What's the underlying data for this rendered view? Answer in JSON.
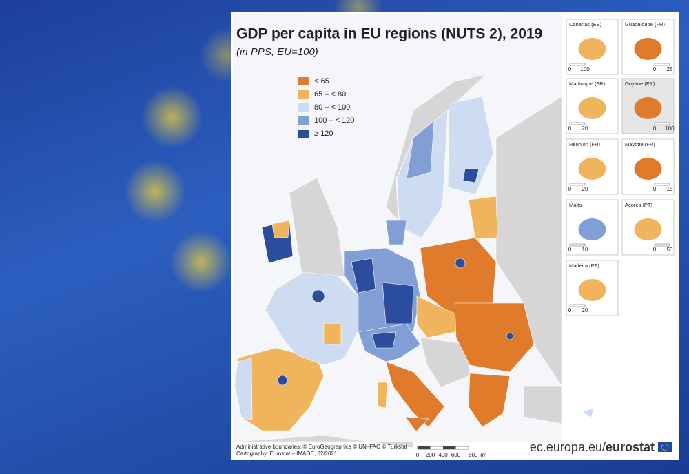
{
  "title": "GDP per capita in EU regions (NUTS 2), 2019",
  "subtitle": "(in PPS, EU=100)",
  "legend": [
    {
      "label": "< 65",
      "color": "#e07b2b"
    },
    {
      "label": "65 – < 80",
      "color": "#f0b55c"
    },
    {
      "label": "80 – < 100",
      "color": "#cddcf1"
    },
    {
      "label": "100 – < 120",
      "color": "#829fd5"
    },
    {
      "label": "≥ 120",
      "color": "#2c4d9e"
    }
  ],
  "insets": [
    {
      "name": "Canarias (ES)",
      "scale": [
        "0",
        "100"
      ]
    },
    {
      "name": "Guadeloupe (FR)",
      "scale": [
        "0",
        "25"
      ]
    },
    {
      "name": "Martinique (FR)",
      "scale": [
        "0",
        "20"
      ]
    },
    {
      "name": "Guyane (FR)",
      "scale": [
        "0",
        "100"
      ]
    },
    {
      "name": "Réunion (FR)",
      "scale": [
        "0",
        "20"
      ]
    },
    {
      "name": "Mayotte (FR)",
      "scale": [
        "0",
        "15"
      ]
    },
    {
      "name": "Malta",
      "scale": [
        "0",
        "10"
      ]
    },
    {
      "name": "Açores (PT)",
      "scale": [
        "0",
        "50"
      ]
    },
    {
      "name": "Madeira (PT)",
      "scale": [
        "0",
        "20"
      ]
    }
  ],
  "scale_bar": [
    "0",
    "200",
    "400",
    "600",
    "800 km"
  ],
  "credits": [
    "Administrative boundaries: © EuroGeographics © UN–FAO © Turkstat",
    "Cartography: Eurostat – IMAGE, 02/2021"
  ],
  "url": {
    "site": "ec.europa.eu/",
    "brand": "eurostat"
  }
}
